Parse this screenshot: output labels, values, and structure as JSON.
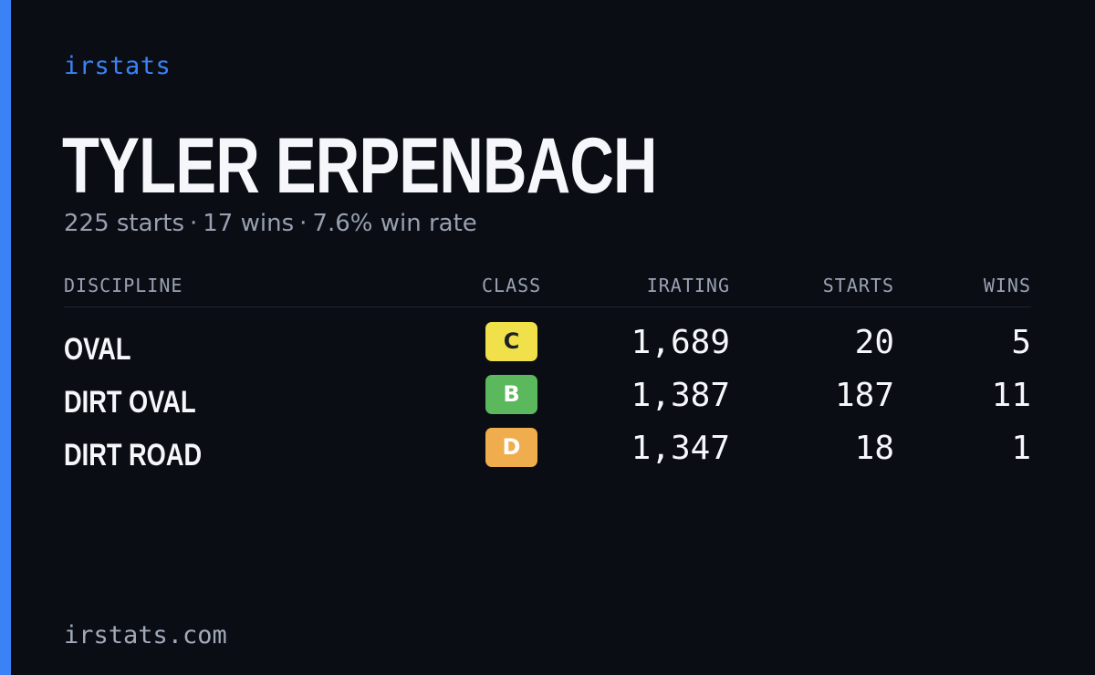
{
  "brand": "irstats",
  "driver": {
    "name": "TYLER ERPENBACH",
    "summary": {
      "starts": "225 starts",
      "wins": "17 wins",
      "win_rate": "7.6% win rate",
      "separator": "·"
    }
  },
  "table": {
    "headers": {
      "discipline": "DISCIPLINE",
      "class": "CLASS",
      "irating": "IRATING",
      "starts": "STARTS",
      "wins": "WINS"
    },
    "rows": [
      {
        "discipline": "OVAL",
        "class": "C",
        "class_color": "#f0e04a",
        "class_text_color": "#1c1f26",
        "irating": "1,689",
        "starts": "20",
        "wins": "5"
      },
      {
        "discipline": "DIRT OVAL",
        "class": "B",
        "class_color": "#5cb85c",
        "class_text_color": "#ffffff",
        "irating": "1,387",
        "starts": "187",
        "wins": "11"
      },
      {
        "discipline": "DIRT ROAD",
        "class": "D",
        "class_color": "#f0ad4e",
        "class_text_color": "#ffffff",
        "irating": "1,347",
        "starts": "18",
        "wins": "1"
      }
    ]
  },
  "footer": "irstats.com",
  "colors": {
    "accent": "#3b82f6",
    "background": "#0a0d14"
  }
}
